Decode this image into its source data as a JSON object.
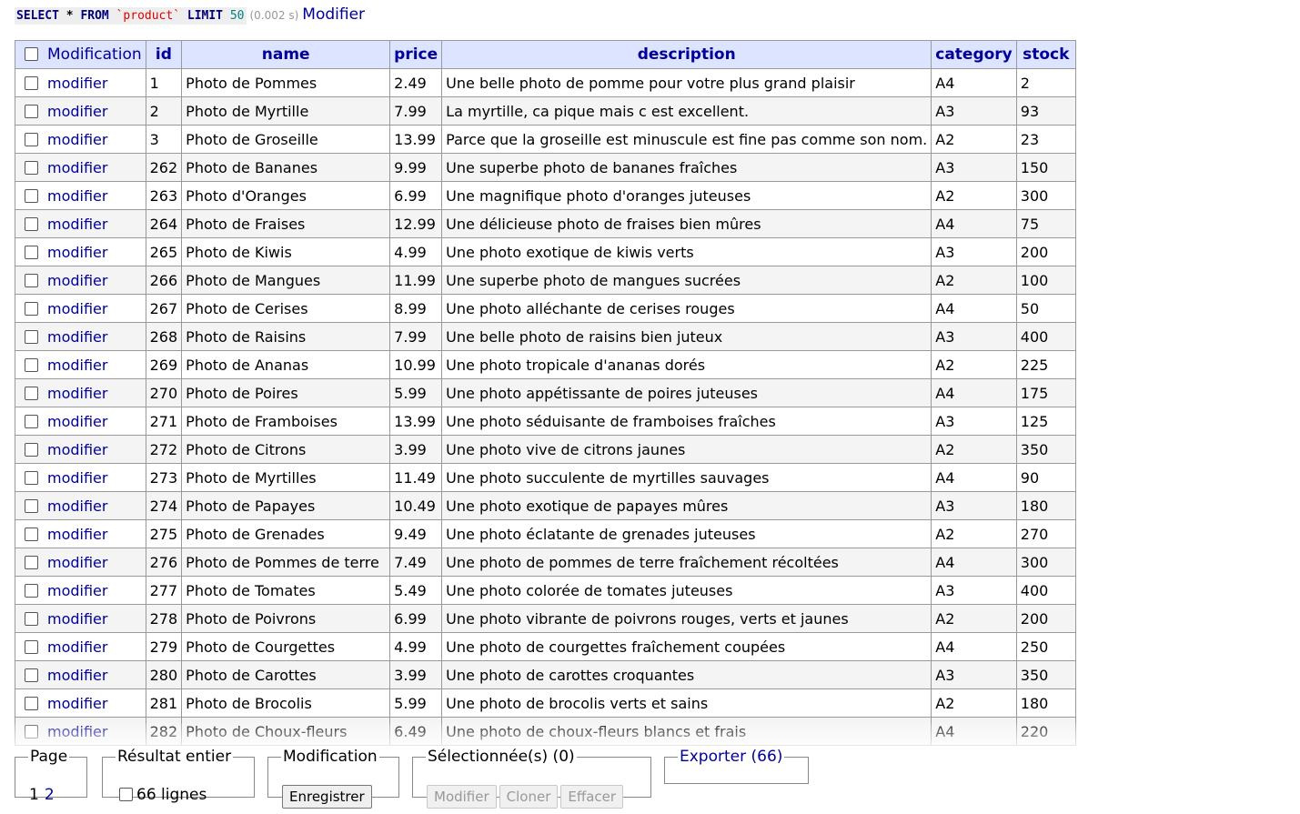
{
  "query": {
    "kw_select": "SELECT",
    "star": "*",
    "kw_from": "FROM",
    "table_name": "`product`",
    "kw_limit": "LIMIT",
    "limit_value": "50",
    "time": "(0.002 s)",
    "edit_link": "Modifier"
  },
  "table": {
    "header_modification": "Modification",
    "columns": [
      "id",
      "name",
      "price",
      "description",
      "category",
      "stock"
    ],
    "row_action_label": "modifier",
    "rows": [
      [
        "1",
        "Photo de Pommes",
        "2.49",
        "Une belle photo de pomme pour votre plus grand plaisir",
        "A4",
        "2"
      ],
      [
        "2",
        "Photo de Myrtille",
        "7.99",
        "La myrtille, ca pique mais c est excellent.",
        "A3",
        "93"
      ],
      [
        "3",
        "Photo de Groseille",
        "13.99",
        "Parce que la groseille est minuscule est fine pas comme son nom.",
        "A2",
        "23"
      ],
      [
        "262",
        "Photo de Bananes",
        "9.99",
        "Une superbe photo de bananes fraîches",
        "A3",
        "150"
      ],
      [
        "263",
        "Photo d'Oranges",
        "6.99",
        "Une magnifique photo d'oranges juteuses",
        "A2",
        "300"
      ],
      [
        "264",
        "Photo de Fraises",
        "12.99",
        "Une délicieuse photo de fraises bien mûres",
        "A4",
        "75"
      ],
      [
        "265",
        "Photo de Kiwis",
        "4.99",
        "Une photo exotique de kiwis verts",
        "A3",
        "200"
      ],
      [
        "266",
        "Photo de Mangues",
        "11.99",
        "Une superbe photo de mangues sucrées",
        "A2",
        "100"
      ],
      [
        "267",
        "Photo de Cerises",
        "8.99",
        "Une photo alléchante de cerises rouges",
        "A4",
        "50"
      ],
      [
        "268",
        "Photo de Raisins",
        "7.99",
        "Une belle photo de raisins bien juteux",
        "A3",
        "400"
      ],
      [
        "269",
        "Photo de Ananas",
        "10.99",
        "Une photo tropicale d'ananas dorés",
        "A2",
        "225"
      ],
      [
        "270",
        "Photo de Poires",
        "5.99",
        "Une photo appétissante de poires juteuses",
        "A4",
        "175"
      ],
      [
        "271",
        "Photo de Framboises",
        "13.99",
        "Une photo séduisante de framboises fraîches",
        "A3",
        "125"
      ],
      [
        "272",
        "Photo de Citrons",
        "3.99",
        "Une photo vive de citrons jaunes",
        "A2",
        "350"
      ],
      [
        "273",
        "Photo de Myrtilles",
        "11.49",
        "Une photo succulente de myrtilles sauvages",
        "A4",
        "90"
      ],
      [
        "274",
        "Photo de Papayes",
        "10.49",
        "Une photo exotique de papayes mûres",
        "A3",
        "180"
      ],
      [
        "275",
        "Photo de Grenades",
        "9.49",
        "Une photo éclatante de grenades juteuses",
        "A2",
        "270"
      ],
      [
        "276",
        "Photo de Pommes de terre",
        "7.49",
        "Une photo de pommes de terre fraîchement récoltées",
        "A4",
        "300"
      ],
      [
        "277",
        "Photo de Tomates",
        "5.49",
        "Une photo colorée de tomates juteuses",
        "A3",
        "400"
      ],
      [
        "278",
        "Photo de Poivrons",
        "6.99",
        "Une photo vibrante de poivrons rouges, verts et jaunes",
        "A2",
        "200"
      ],
      [
        "279",
        "Photo de Courgettes",
        "4.99",
        "Une photo de courgettes fraîchement coupées",
        "A4",
        "250"
      ],
      [
        "280",
        "Photo de Carottes",
        "3.99",
        "Une photo de carottes croquantes",
        "A3",
        "350"
      ],
      [
        "281",
        "Photo de Brocolis",
        "5.99",
        "Une photo de brocolis verts et sains",
        "A2",
        "180"
      ],
      [
        "282",
        "Photo de Choux-fleurs",
        "6.49",
        "Une photo de choux-fleurs blancs et frais",
        "A4",
        "220"
      ]
    ]
  },
  "footer": {
    "page_legend": "Page",
    "pages": [
      "1",
      "2"
    ],
    "full_result_legend": "Résultat entier",
    "full_result_count": "66 lignes",
    "modification_legend": "Modification",
    "save_button": "Enregistrer",
    "selected_legend": "Sélectionnée(s) (0)",
    "selected_buttons": [
      "Modifier",
      "Cloner",
      "Effacer"
    ],
    "export_link": "Exporter (66)"
  },
  "colors": {
    "link": "#000099",
    "header_bg": "#dde4ff",
    "row_alt_bg": "#f4f4f4",
    "border": "#999999"
  }
}
